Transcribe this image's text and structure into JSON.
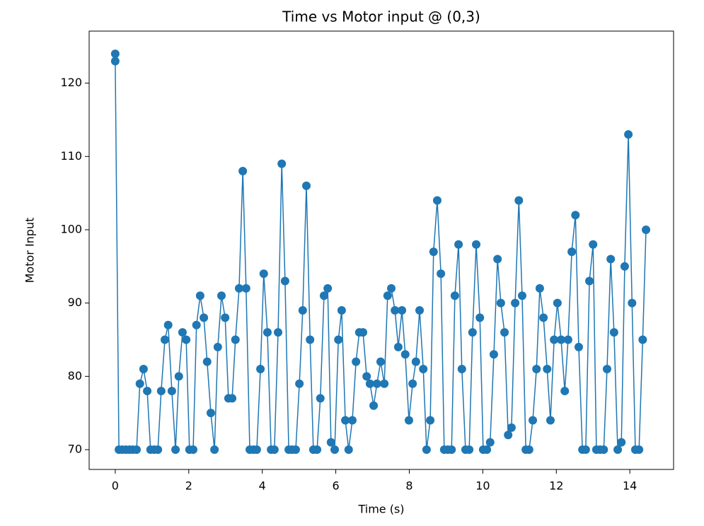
{
  "chart_data": {
    "type": "line",
    "title": "Time vs Motor input @ (0,3)",
    "x_label": "Time (s)",
    "y_label": "Motor Input",
    "x": [
      0,
      0,
      0.1,
      0.19,
      0.29,
      0.39,
      0.48,
      0.58,
      0.67,
      0.77,
      0.87,
      0.96,
      1.06,
      1.16,
      1.25,
      1.35,
      1.44,
      1.54,
      1.64,
      1.73,
      1.83,
      1.93,
      2.02,
      2.12,
      2.21,
      2.31,
      2.41,
      2.5,
      2.6,
      2.7,
      2.79,
      2.89,
      2.99,
      3.08,
      3.18,
      3.27,
      3.37,
      3.47,
      3.56,
      3.66,
      3.76,
      3.85,
      3.95,
      4.04,
      4.14,
      4.24,
      4.33,
      4.43,
      4.53,
      4.62,
      4.72,
      4.81,
      4.91,
      5.01,
      5.1,
      5.2,
      5.3,
      5.39,
      5.49,
      5.58,
      5.68,
      5.78,
      5.87,
      5.97,
      6.07,
      6.16,
      6.26,
      6.35,
      6.45,
      6.55,
      6.64,
      6.74,
      6.84,
      6.93,
      7.03,
      7.12,
      7.22,
      7.32,
      7.41,
      7.51,
      7.61,
      7.7,
      7.8,
      7.89,
      7.99,
      8.09,
      8.18,
      8.28,
      8.38,
      8.47,
      8.57,
      8.66,
      8.76,
      8.86,
      8.95,
      9.05,
      9.15,
      9.24,
      9.34,
      9.43,
      9.53,
      9.63,
      9.72,
      9.82,
      9.92,
      10.01,
      10.11,
      10.2,
      10.3,
      10.4,
      10.49,
      10.59,
      10.69,
      10.78,
      10.88,
      10.98,
      11.07,
      11.17,
      11.26,
      11.36,
      11.46,
      11.55,
      11.65,
      11.75,
      11.84,
      11.94,
      12.03,
      12.13,
      12.23,
      12.32,
      12.42,
      12.52,
      12.61,
      12.71,
      12.8,
      12.9,
      13.0,
      13.09,
      13.19,
      13.29,
      13.38,
      13.48,
      13.57,
      13.67,
      13.77,
      13.86,
      13.96,
      14.06,
      14.15,
      14.25,
      14.35,
      14.44
    ],
    "series": [
      {
        "color": "#1f77b4",
        "values": [
          124,
          123,
          70,
          70,
          70,
          70,
          70,
          70,
          79,
          81,
          78,
          70,
          70,
          70,
          78,
          85,
          87,
          78,
          70,
          80,
          86,
          85,
          70,
          70,
          87,
          91,
          88,
          82,
          75,
          70,
          84,
          91,
          88,
          77,
          77,
          85,
          92,
          108,
          92,
          70,
          70,
          70,
          81,
          94,
          86,
          70,
          70,
          86,
          109,
          93,
          70,
          70,
          70,
          79,
          89,
          106,
          85,
          70,
          70,
          77,
          91,
          92,
          71,
          70,
          85,
          89,
          74,
          70,
          74,
          82,
          86,
          86,
          80,
          79,
          76,
          79,
          82,
          79,
          91,
          92,
          89,
          84,
          89,
          83,
          74,
          79,
          82,
          89,
          81,
          70,
          74,
          97,
          104,
          94,
          70,
          70,
          70,
          91,
          98,
          81,
          70,
          70,
          86,
          98,
          88,
          70,
          70,
          71,
          83,
          96,
          90,
          86,
          72,
          73,
          90,
          104,
          91,
          70,
          70,
          74,
          81,
          92,
          88,
          81,
          74,
          85,
          90,
          85,
          78,
          85,
          97,
          102,
          84,
          70,
          70,
          93,
          98,
          70,
          70,
          70,
          81,
          96,
          86,
          70,
          71,
          95,
          113,
          90,
          70,
          70,
          85,
          100
        ]
      }
    ],
    "xlim": [
      -0.71,
      15.19
    ],
    "ylim": [
      67.3,
      127.1
    ],
    "xticks": [
      0,
      2,
      4,
      6,
      8,
      10,
      12,
      14
    ],
    "yticks": [
      70,
      80,
      90,
      100,
      110,
      120
    ]
  }
}
